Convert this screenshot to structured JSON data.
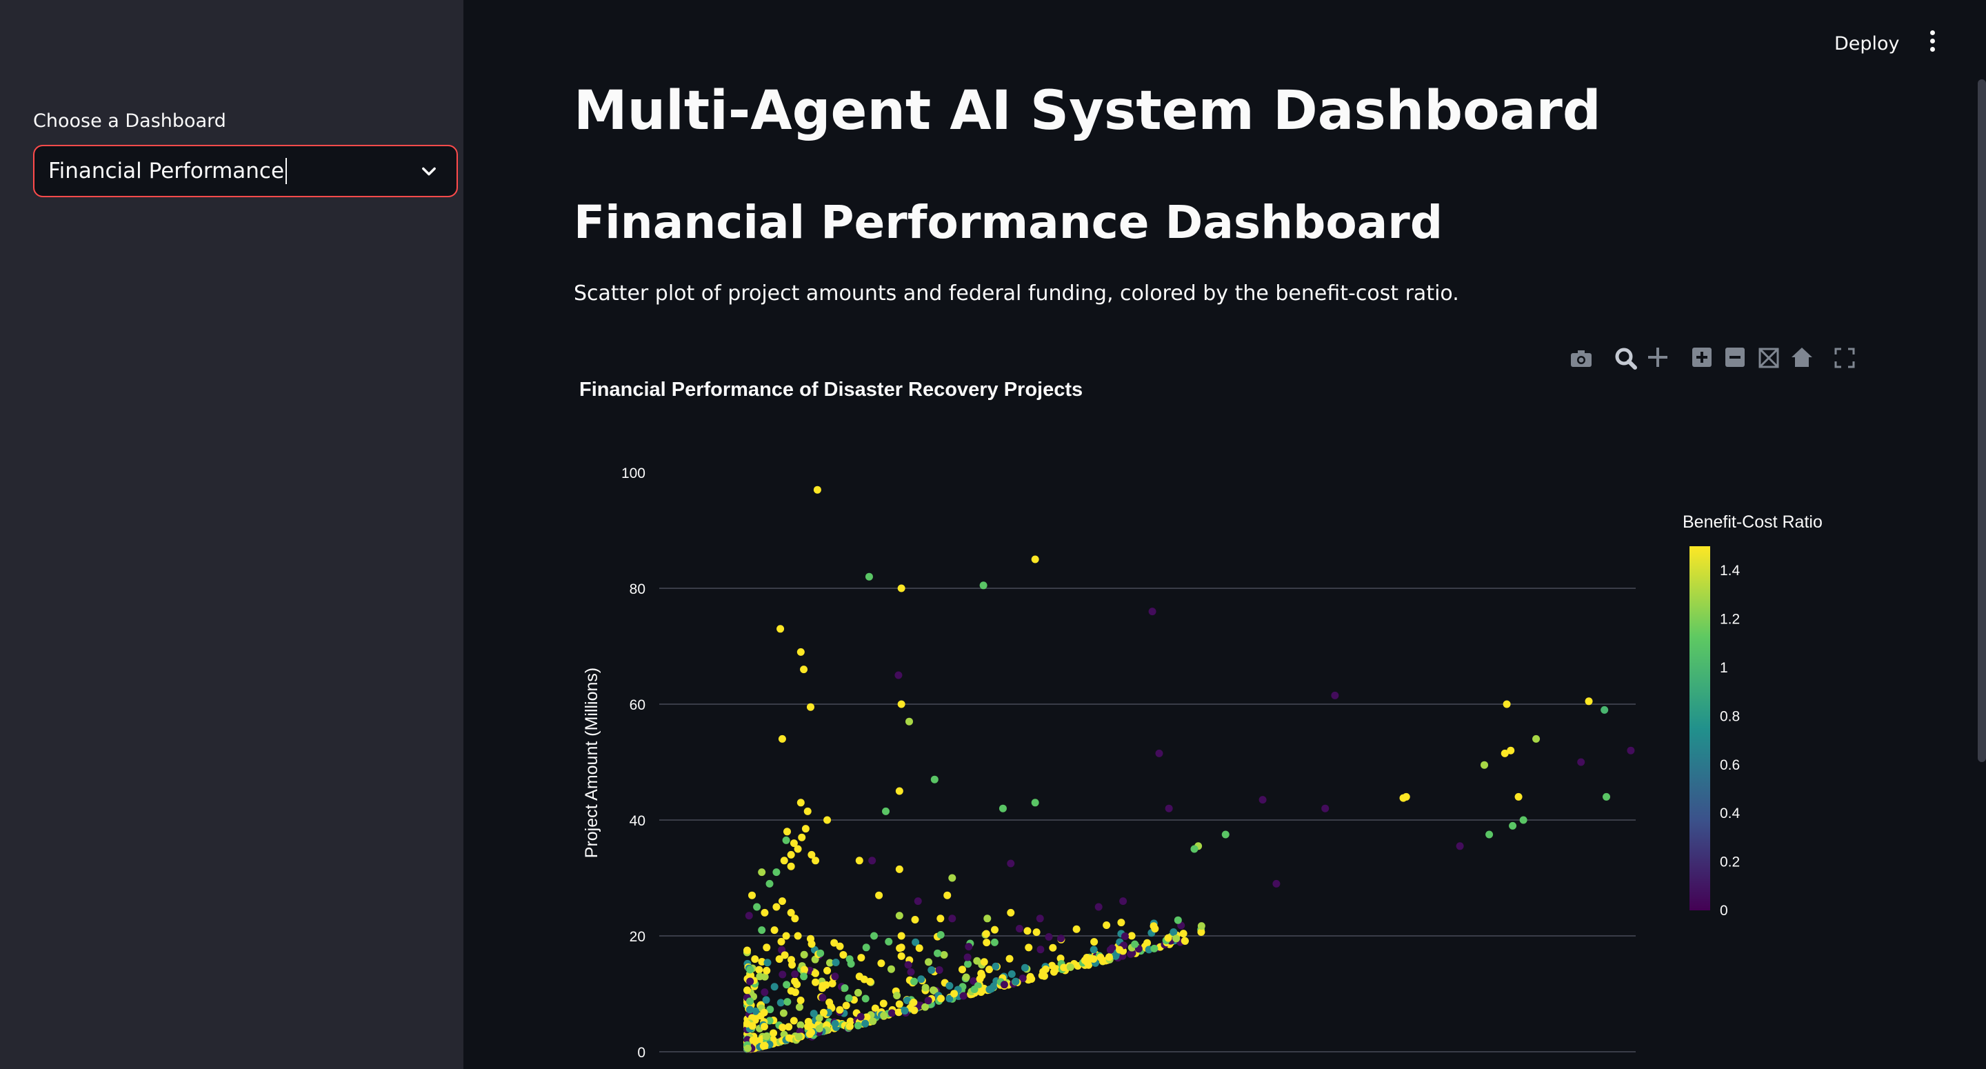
{
  "sidebar": {
    "select_label": "Choose a Dashboard",
    "selected_value": "Financial Performance"
  },
  "header": {
    "deploy_label": "Deploy"
  },
  "main": {
    "title": "Multi-Agent AI System Dashboard",
    "subtitle": "Financial Performance Dashboard",
    "description": "Scatter plot of project amounts and federal funding, colored by the benefit-cost ratio."
  },
  "toolbar_icons": [
    "camera-icon",
    "zoom-icon",
    "pan-icon",
    "zoom-in-icon",
    "zoom-out-icon",
    "autoscale-icon",
    "reset-axes-icon",
    "fullscreen-icon"
  ],
  "chart_data": {
    "type": "scatter",
    "title": "Financial Performance of Disaster Recovery Projects",
    "ylabel": "Project Amount (Millions)",
    "ylim": [
      0,
      100
    ],
    "yticks": [
      0,
      20,
      40,
      60,
      80,
      100
    ],
    "grid": true,
    "colorscale": "viridis",
    "colorbar": {
      "title": "Benefit-Cost Ratio",
      "range": [
        0,
        1.5
      ],
      "ticks": [
        0,
        0.2,
        0.4,
        0.6,
        0.8,
        1,
        1.2,
        1.4
      ]
    },
    "colors": {
      "low": "#440154",
      "mid": "#21918c",
      "high": "#fde725"
    },
    "points": [
      {
        "x": 16.2,
        "y": 97,
        "c": 1.5
      },
      {
        "x": 38.5,
        "y": 85,
        "c": 1.5
      },
      {
        "x": 24.8,
        "y": 80,
        "c": 1.5
      },
      {
        "x": 21.5,
        "y": 82,
        "c": 1.1
      },
      {
        "x": 33.2,
        "y": 80.5,
        "c": 1.1
      },
      {
        "x": 50.5,
        "y": 76,
        "c": 0.05
      },
      {
        "x": 12.4,
        "y": 73,
        "c": 1.5
      },
      {
        "x": 14.5,
        "y": 69,
        "c": 1.5
      },
      {
        "x": 14.8,
        "y": 66,
        "c": 1.5
      },
      {
        "x": 24.5,
        "y": 65,
        "c": 0.05
      },
      {
        "x": 15.5,
        "y": 59.5,
        "c": 1.5
      },
      {
        "x": 24.8,
        "y": 60,
        "c": 1.5
      },
      {
        "x": 25.6,
        "y": 57,
        "c": 1.3
      },
      {
        "x": 12.6,
        "y": 54,
        "c": 1.5
      },
      {
        "x": 69.2,
        "y": 61.5,
        "c": 0.05
      },
      {
        "x": 86.8,
        "y": 60,
        "c": 1.5
      },
      {
        "x": 95.2,
        "y": 60.5,
        "c": 1.5
      },
      {
        "x": 96.8,
        "y": 59,
        "c": 1.0
      },
      {
        "x": 89.8,
        "y": 54,
        "c": 1.3
      },
      {
        "x": 51.2,
        "y": 51.5,
        "c": 0.05
      },
      {
        "x": 99.5,
        "y": 52,
        "c": 0.05
      },
      {
        "x": 87.2,
        "y": 52,
        "c": 1.5
      },
      {
        "x": 86.6,
        "y": 51.5,
        "c": 1.5
      },
      {
        "x": 84.5,
        "y": 49.5,
        "c": 1.3
      },
      {
        "x": 94.4,
        "y": 50,
        "c": 0.05
      },
      {
        "x": 28.2,
        "y": 47,
        "c": 1.1
      },
      {
        "x": 24.6,
        "y": 45,
        "c": 1.5
      },
      {
        "x": 38.5,
        "y": 43,
        "c": 1.1
      },
      {
        "x": 35.2,
        "y": 42,
        "c": 1.1
      },
      {
        "x": 23.2,
        "y": 41.5,
        "c": 1.1
      },
      {
        "x": 14.5,
        "y": 43,
        "c": 1.5
      },
      {
        "x": 15.2,
        "y": 41.5,
        "c": 1.5
      },
      {
        "x": 17.2,
        "y": 40,
        "c": 1.5
      },
      {
        "x": 61.8,
        "y": 43.5,
        "c": 0.05
      },
      {
        "x": 52.2,
        "y": 42,
        "c": 0.05
      },
      {
        "x": 68.2,
        "y": 42,
        "c": 0.05
      },
      {
        "x": 76.5,
        "y": 44,
        "c": 1.5
      },
      {
        "x": 76.2,
        "y": 43.8,
        "c": 1.5
      },
      {
        "x": 97.0,
        "y": 44,
        "c": 1.1
      },
      {
        "x": 88.0,
        "y": 44,
        "c": 1.5
      },
      {
        "x": 88.5,
        "y": 40,
        "c": 1.1
      },
      {
        "x": 87.4,
        "y": 39,
        "c": 1.1
      },
      {
        "x": 85.0,
        "y": 37.5,
        "c": 1.1
      },
      {
        "x": 82.0,
        "y": 35.5,
        "c": 0.05
      },
      {
        "x": 58.0,
        "y": 37.5,
        "c": 1.1
      },
      {
        "x": 55.2,
        "y": 35.5,
        "c": 1.3
      },
      {
        "x": 54.8,
        "y": 35,
        "c": 1.1
      },
      {
        "x": 63.2,
        "y": 29,
        "c": 0.05
      },
      {
        "x": 13.1,
        "y": 38,
        "c": 1.5
      },
      {
        "x": 13.8,
        "y": 36,
        "c": 1.5
      },
      {
        "x": 14.2,
        "y": 35,
        "c": 1.5
      },
      {
        "x": 13.5,
        "y": 34,
        "c": 1.5
      },
      {
        "x": 12.8,
        "y": 33,
        "c": 1.5
      },
      {
        "x": 14.6,
        "y": 37,
        "c": 1.5
      },
      {
        "x": 15.0,
        "y": 38.5,
        "c": 1.5
      },
      {
        "x": 13.0,
        "y": 36.5,
        "c": 1.1
      },
      {
        "x": 16.0,
        "y": 33,
        "c": 1.5
      },
      {
        "x": 15.6,
        "y": 34,
        "c": 1.5
      },
      {
        "x": 20.5,
        "y": 33,
        "c": 1.5
      },
      {
        "x": 21.8,
        "y": 33,
        "c": 0.05
      },
      {
        "x": 10.5,
        "y": 31,
        "c": 1.3
      },
      {
        "x": 11.3,
        "y": 29,
        "c": 1.1
      },
      {
        "x": 12.0,
        "y": 31,
        "c": 1.1
      },
      {
        "x": 13.5,
        "y": 32,
        "c": 1.5
      },
      {
        "x": 24.6,
        "y": 31.5,
        "c": 1.5
      },
      {
        "x": 22.5,
        "y": 27,
        "c": 1.5
      },
      {
        "x": 26.5,
        "y": 26,
        "c": 0.05
      },
      {
        "x": 30.0,
        "y": 30,
        "c": 1.3
      },
      {
        "x": 29.5,
        "y": 27,
        "c": 1.5
      },
      {
        "x": 28.8,
        "y": 23,
        "c": 1.5
      },
      {
        "x": 24.6,
        "y": 23.5,
        "c": 1.3
      },
      {
        "x": 26.2,
        "y": 22.8,
        "c": 1.5
      },
      {
        "x": 30.0,
        "y": 23,
        "c": 0.05
      },
      {
        "x": 33.6,
        "y": 23,
        "c": 1.3
      },
      {
        "x": 39.0,
        "y": 23,
        "c": 0.05
      },
      {
        "x": 36.0,
        "y": 32.5,
        "c": 0.05
      },
      {
        "x": 36.0,
        "y": 24,
        "c": 1.5
      },
      {
        "x": 45.0,
        "y": 25,
        "c": 0.05
      },
      {
        "x": 47.5,
        "y": 26,
        "c": 0.05
      },
      {
        "x": 9.5,
        "y": 27,
        "c": 1.5
      },
      {
        "x": 10.0,
        "y": 25,
        "c": 1.1
      },
      {
        "x": 10.8,
        "y": 24,
        "c": 1.5
      },
      {
        "x": 12.0,
        "y": 25,
        "c": 1.5
      },
      {
        "x": 12.6,
        "y": 26,
        "c": 1.5
      },
      {
        "x": 13.5,
        "y": 24,
        "c": 1.5
      },
      {
        "x": 13.9,
        "y": 23,
        "c": 1.5
      },
      {
        "x": 9.2,
        "y": 23.5,
        "c": 0.05
      },
      {
        "x": 10.5,
        "y": 21,
        "c": 1.1
      },
      {
        "x": 11.8,
        "y": 21,
        "c": 1.5
      },
      {
        "x": 13.0,
        "y": 20,
        "c": 1.5
      },
      {
        "x": 14.2,
        "y": 20,
        "c": 1.5
      },
      {
        "x": 15.5,
        "y": 19.5,
        "c": 1.5
      },
      {
        "x": 12.5,
        "y": 19,
        "c": 1.5
      },
      {
        "x": 11.0,
        "y": 18,
        "c": 1.5
      },
      {
        "x": 16.5,
        "y": 17,
        "c": 1.1
      },
      {
        "x": 21.2,
        "y": 18,
        "c": 1.1
      },
      {
        "x": 24.8,
        "y": 20,
        "c": 1.5
      },
      {
        "x": 23.5,
        "y": 19,
        "c": 1.1
      },
      {
        "x": 24.8,
        "y": 18,
        "c": 1.5
      },
      {
        "x": 24.8,
        "y": 16.5,
        "c": 1.5
      },
      {
        "x": 22.0,
        "y": 20,
        "c": 1.1
      },
      {
        "x": 25.5,
        "y": 15,
        "c": 0.05
      },
      {
        "x": 28.5,
        "y": 17,
        "c": 1.1
      },
      {
        "x": 19.5,
        "y": 16,
        "c": 1.1
      },
      {
        "x": 13.6,
        "y": 15,
        "c": 1.5
      },
      {
        "x": 9.8,
        "y": 16,
        "c": 1.5
      },
      {
        "x": 12.3,
        "y": 16,
        "c": 1.5
      },
      {
        "x": 11.0,
        "y": 14,
        "c": 1.5
      },
      {
        "x": 10.3,
        "y": 13,
        "c": 1.3
      },
      {
        "x": 14.8,
        "y": 13,
        "c": 1.1
      },
      {
        "x": 17.2,
        "y": 14,
        "c": 1.5
      },
      {
        "x": 18.0,
        "y": 13,
        "c": 0.05
      },
      {
        "x": 21.0,
        "y": 12.5,
        "c": 1.5
      },
      {
        "x": 16.0,
        "y": 12,
        "c": 1.5
      },
      {
        "x": 19.0,
        "y": 11,
        "c": 1.1
      },
      {
        "x": 20.5,
        "y": 13,
        "c": 1.5
      }
    ]
  }
}
